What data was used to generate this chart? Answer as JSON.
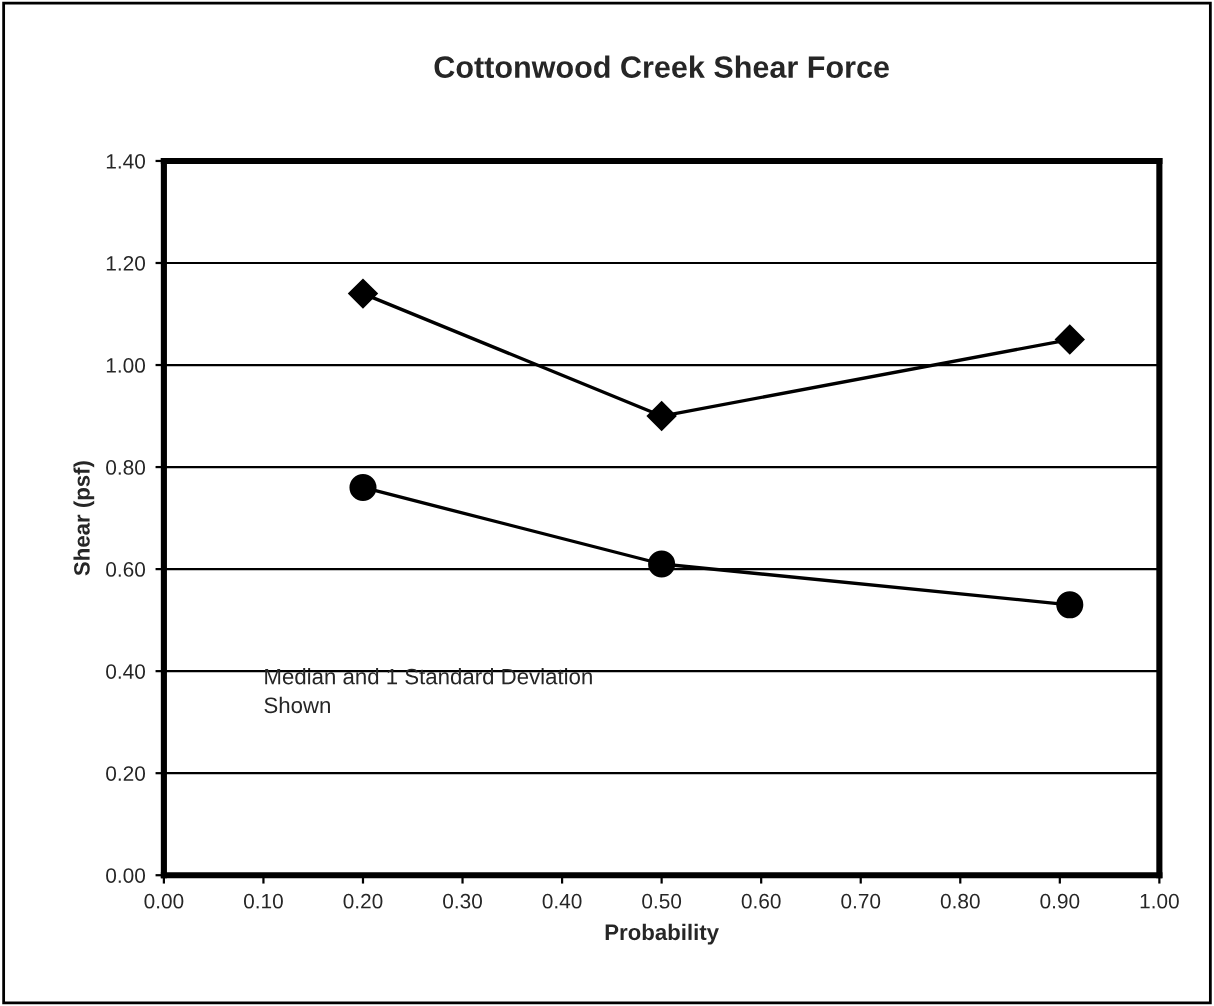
{
  "chart_data": {
    "type": "line",
    "title": "Cottonwood Creek Shear Force",
    "xlabel": "Probability",
    "ylabel": "Shear (psf)",
    "series": [
      {
        "color": "#000000",
        "marker": "diamond",
        "x": [
          0.2,
          0.5,
          0.91
        ],
        "values": [
          1.14,
          0.9,
          1.05
        ]
      },
      {
        "color": "#000000",
        "marker": "circle",
        "x": [
          0.2,
          0.5,
          0.91
        ],
        "values": [
          0.76,
          0.61,
          0.53
        ]
      }
    ],
    "xlim": [
      0,
      1
    ],
    "xticks": [
      {
        "value": 0,
        "label": "0.00"
      },
      {
        "value": 0.1,
        "label": "0.10"
      },
      {
        "value": 0.2,
        "label": "0.20"
      },
      {
        "value": 0.3,
        "label": "0.30"
      },
      {
        "value": 0.4,
        "label": "0.40"
      },
      {
        "value": 0.5,
        "label": "0.50"
      },
      {
        "value": 0.6,
        "label": "0.60"
      },
      {
        "value": 0.7,
        "label": "0.70"
      },
      {
        "value": 0.8,
        "label": "0.80"
      },
      {
        "value": 0.9,
        "label": "0.90"
      },
      {
        "value": 1,
        "label": "1.00"
      }
    ],
    "ylim": [
      0,
      1.4
    ],
    "yticks": [
      {
        "value": 0,
        "label": "0.00"
      },
      {
        "value": 0.2,
        "label": "0.20"
      },
      {
        "value": 0.4,
        "label": "0.40"
      },
      {
        "value": 0.6,
        "label": "0.60"
      },
      {
        "value": 0.8,
        "label": "0.80"
      },
      {
        "value": 1,
        "label": "1.00"
      },
      {
        "value": 1.2,
        "label": "1.20"
      },
      {
        "value": 1.4,
        "label": "1.40"
      }
    ],
    "grid": "y",
    "line_style": "solid",
    "annotations": [
      {
        "text": "Median and 1 Standard Deviation\nShown"
      }
    ]
  }
}
